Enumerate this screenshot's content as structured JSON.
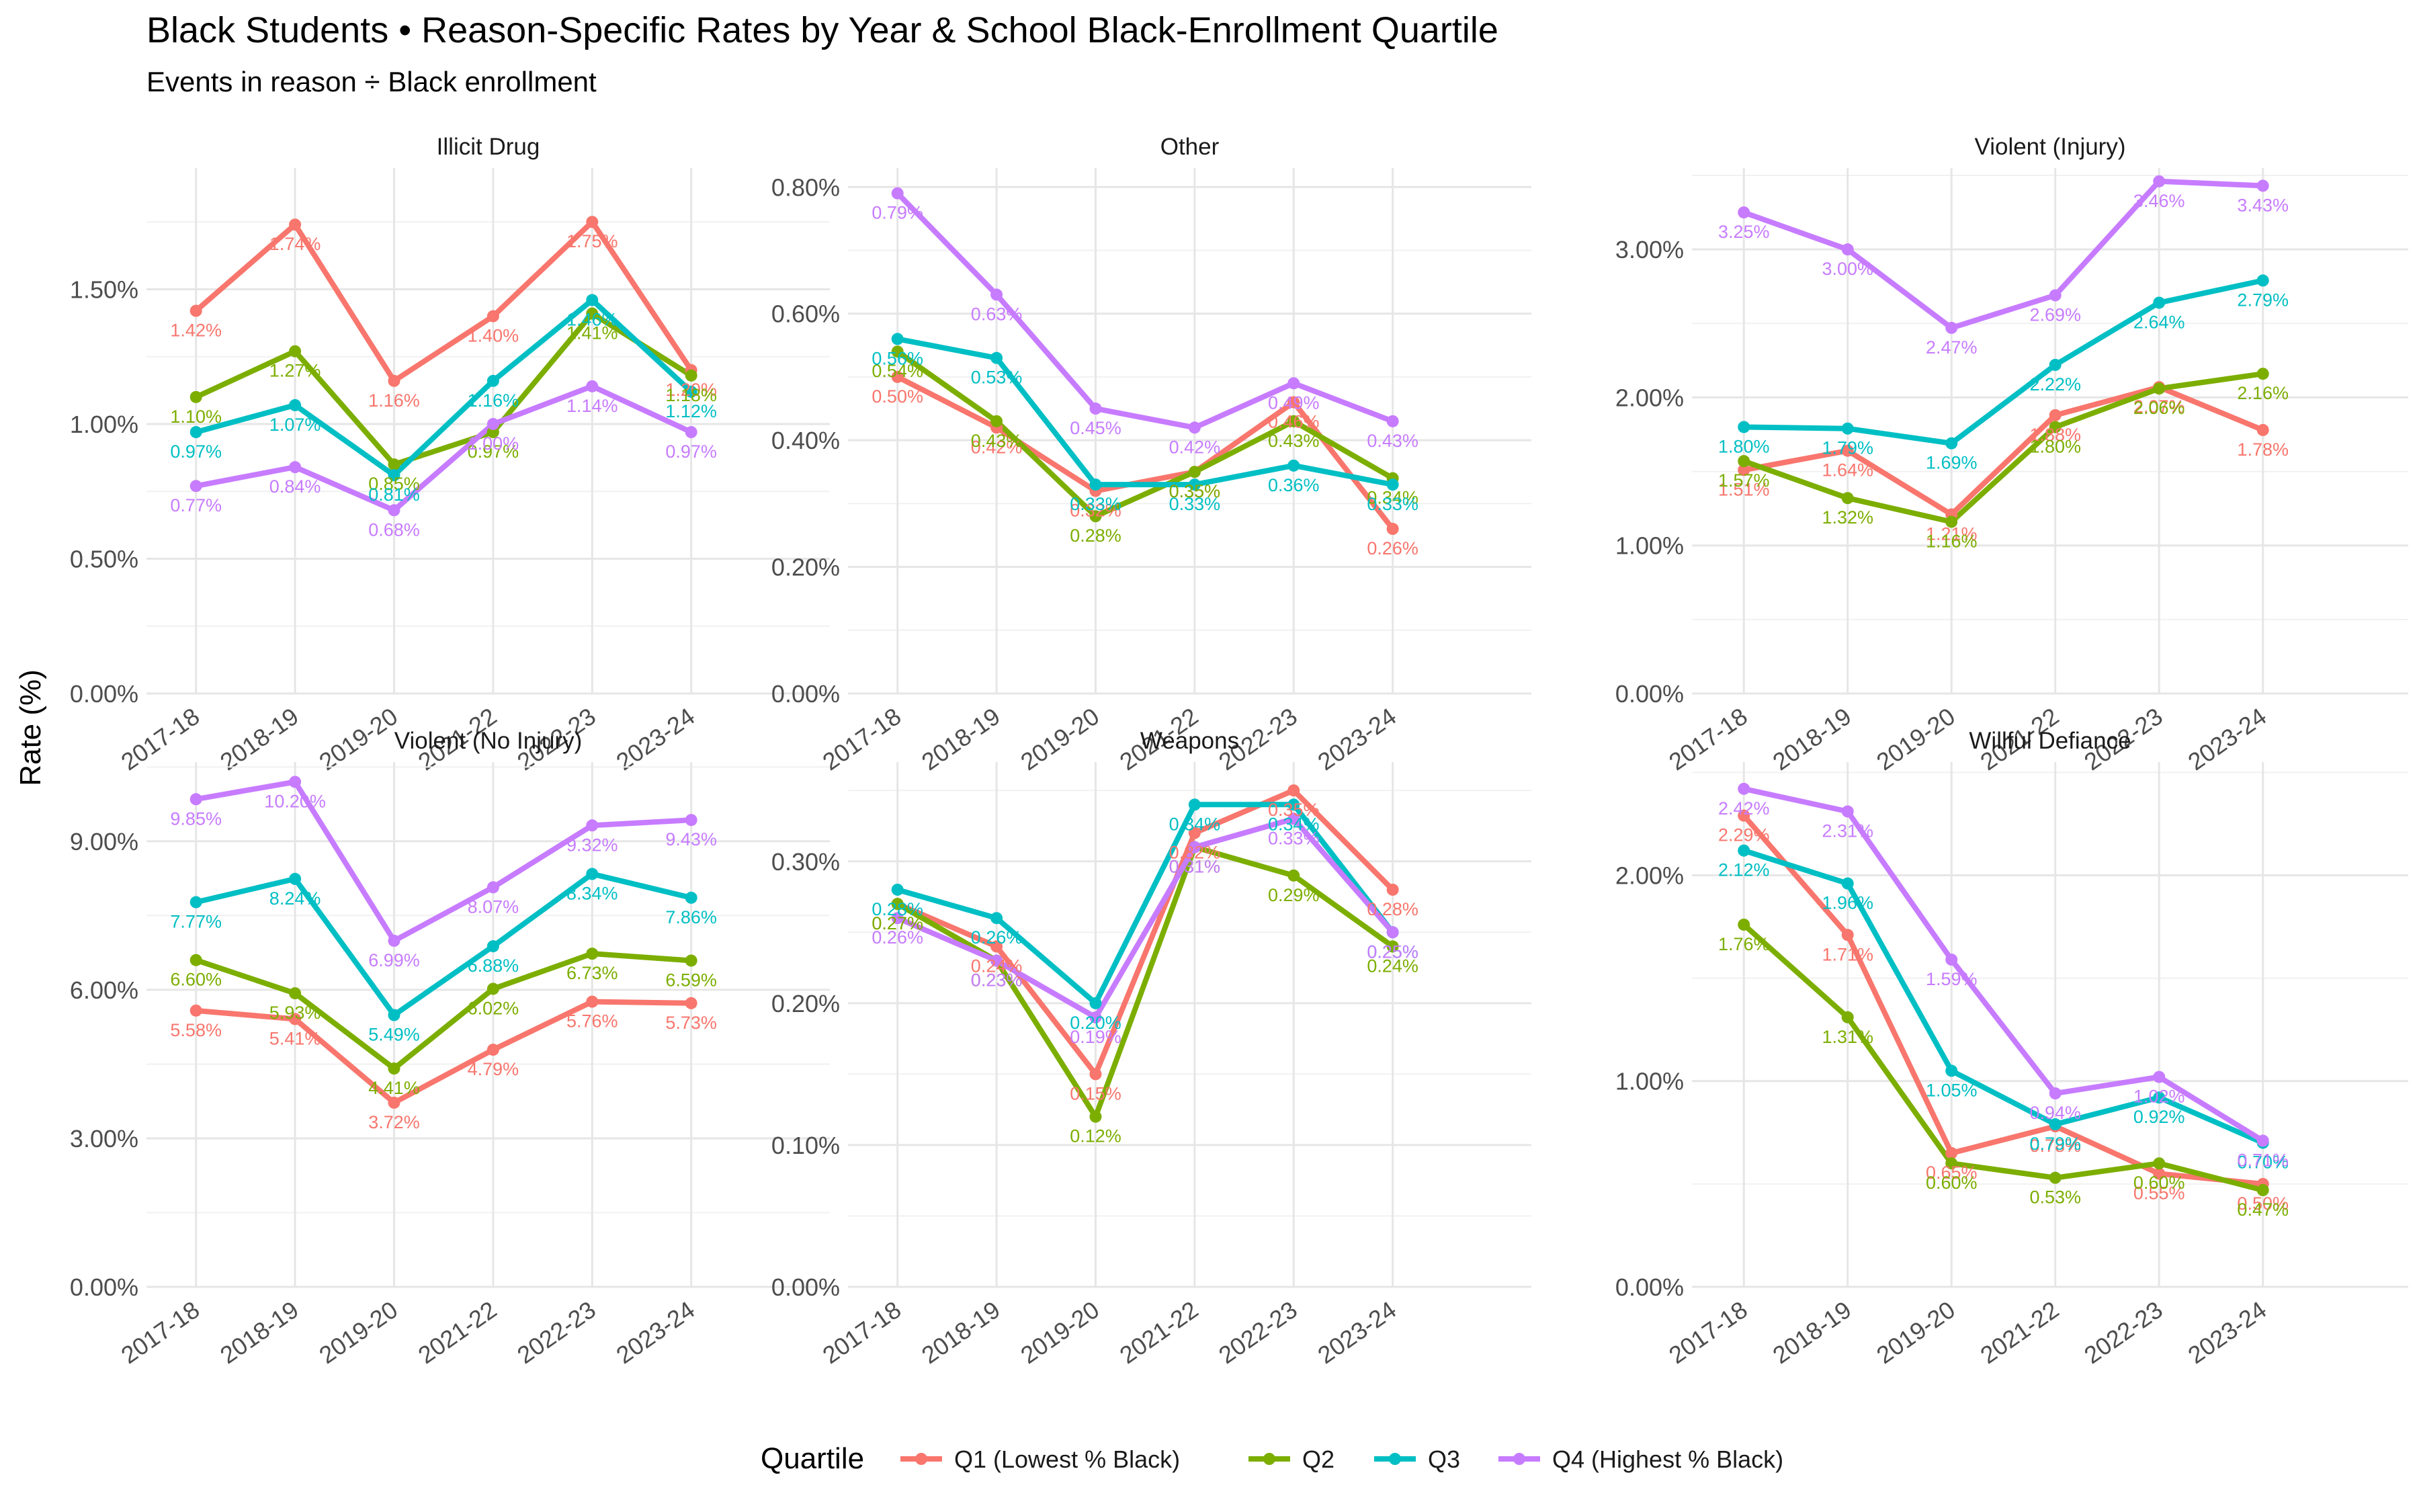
{
  "title": "Black Students • Reason-Specific Rates by Year & School Black-Enrollment Quartile",
  "subtitle": "Events in reason ÷ Black enrollment",
  "chart_data": {
    "type": "line",
    "ylabel": "Rate (%)",
    "legend": {
      "title": "Quartile",
      "position": "bottom"
    },
    "grid": true,
    "categories": [
      "2017-18",
      "2018-19",
      "2019-20",
      "2021-22",
      "2022-23",
      "2023-24"
    ],
    "colors": {
      "Q1 (Lowest % Black)": "#F8766D",
      "Q2": "#7CAE00",
      "Q3": "#00BFC4",
      "Q4 (Highest % Black)": "#C77CFF"
    },
    "panels": [
      {
        "title": "Illicit Drug",
        "ylim": [
          0,
          1.95
        ],
        "yticks": [
          0,
          0.5,
          1.0,
          1.5
        ],
        "ytick_labels": [
          "0.00%",
          "0.50%",
          "1.00%",
          "1.50%"
        ],
        "series": [
          {
            "name": "Q1 (Lowest % Black)",
            "values": [
              1.42,
              1.74,
              1.16,
              1.4,
              1.75,
              1.2
            ],
            "labels": [
              "1.42%",
              "1.74%",
              "1.16%",
              "1.40%",
              "1.75%",
              "1.20%"
            ]
          },
          {
            "name": "Q2",
            "values": [
              1.1,
              1.27,
              0.85,
              0.97,
              1.41,
              1.18
            ],
            "labels": [
              "1.10%",
              "1.27%",
              "0.85%",
              "0.97%",
              "1.41%",
              "1.18%"
            ]
          },
          {
            "name": "Q3",
            "values": [
              0.97,
              1.07,
              0.81,
              1.16,
              1.46,
              1.12
            ],
            "labels": [
              "0.97%",
              "1.07%",
              "0.81%",
              "1.16%",
              "1.46%",
              "1.12%"
            ]
          },
          {
            "name": "Q4 (Highest % Black)",
            "values": [
              0.77,
              0.84,
              0.68,
              1.0,
              1.14,
              0.97
            ],
            "labels": [
              "0.77%",
              "0.84%",
              "0.68%",
              "1.00%",
              "1.14%",
              "0.97%"
            ]
          }
        ]
      },
      {
        "title": "Other",
        "ylim": [
          0,
          0.83
        ],
        "yticks": [
          0,
          0.2,
          0.4,
          0.6,
          0.8
        ],
        "ytick_labels": [
          "0.00%",
          "0.20%",
          "0.40%",
          "0.60%",
          "0.80%"
        ],
        "series": [
          {
            "name": "Q1 (Lowest % Black)",
            "values": [
              0.5,
              0.42,
              0.32,
              0.35,
              0.46,
              0.26
            ],
            "labels": [
              "0.50%",
              "0.42%",
              "0.32%",
              "0.35%",
              "0.46%",
              "0.26%"
            ]
          },
          {
            "name": "Q2",
            "values": [
              0.54,
              0.43,
              0.28,
              0.35,
              0.43,
              0.34
            ],
            "labels": [
              "0.54%",
              "0.43%",
              "0.28%",
              "0.35%",
              "0.43%",
              "0.34%"
            ]
          },
          {
            "name": "Q3",
            "values": [
              0.56,
              0.53,
              0.33,
              0.33,
              0.36,
              0.33
            ],
            "labels": [
              "0.56%",
              "0.53%",
              "0.33%",
              "0.33%",
              "0.36%",
              "0.33%"
            ]
          },
          {
            "name": "Q4 (Highest % Black)",
            "values": [
              0.79,
              0.63,
              0.45,
              0.42,
              0.49,
              0.43
            ],
            "labels": [
              "0.79%",
              "0.63%",
              "0.45%",
              "0.42%",
              "0.49%",
              "0.43%"
            ]
          }
        ]
      },
      {
        "title": "Violent (Injury)",
        "ylim": [
          0,
          3.55
        ],
        "yticks": [
          0,
          1.0,
          2.0,
          3.0
        ],
        "ytick_labels": [
          "0.00%",
          "1.00%",
          "2.00%",
          "3.00%"
        ],
        "series": [
          {
            "name": "Q1 (Lowest % Black)",
            "values": [
              1.51,
              1.64,
              1.21,
              1.88,
              2.07,
              1.78
            ],
            "labels": [
              "1.51%",
              "1.64%",
              "1.21%",
              "1.88%",
              "2.07%",
              "1.78%"
            ]
          },
          {
            "name": "Q2",
            "values": [
              1.57,
              1.32,
              1.16,
              1.8,
              2.06,
              2.16
            ],
            "labels": [
              "1.57%",
              "1.32%",
              "1.16%",
              "1.80%",
              "2.06%",
              "2.16%"
            ]
          },
          {
            "name": "Q3",
            "values": [
              1.8,
              1.79,
              1.69,
              2.22,
              2.64,
              2.79
            ],
            "labels": [
              "1.80%",
              "1.79%",
              "1.69%",
              "2.22%",
              "2.64%",
              "2.79%"
            ]
          },
          {
            "name": "Q4 (Highest % Black)",
            "values": [
              3.25,
              3.0,
              2.47,
              2.69,
              3.46,
              3.43
            ],
            "labels": [
              "3.25%",
              "3.00%",
              "2.47%",
              "2.69%",
              "3.46%",
              "3.43%"
            ]
          }
        ]
      },
      {
        "title": "Violent (No Injury)",
        "ylim": [
          0,
          10.6
        ],
        "yticks": [
          0,
          3,
          6,
          9
        ],
        "ytick_labels": [
          "0.00%",
          "3.00%",
          "6.00%",
          "9.00%"
        ],
        "series": [
          {
            "name": "Q1 (Lowest % Black)",
            "values": [
              5.58,
              5.41,
              3.72,
              4.79,
              5.76,
              5.73
            ],
            "labels": [
              "5.58%",
              "5.41%",
              "3.72%",
              "4.79%",
              "5.76%",
              "5.73%"
            ]
          },
          {
            "name": "Q2",
            "values": [
              6.6,
              5.93,
              4.41,
              6.02,
              6.73,
              6.59
            ],
            "labels": [
              "6.60%",
              "5.93%",
              "4.41%",
              "6.02%",
              "6.73%",
              "6.59%"
            ]
          },
          {
            "name": "Q3",
            "values": [
              7.77,
              8.24,
              5.49,
              6.88,
              8.34,
              7.86
            ],
            "labels": [
              "7.77%",
              "8.24%",
              "5.49%",
              "6.88%",
              "8.34%",
              "7.86%"
            ]
          },
          {
            "name": "Q4 (Highest % Black)",
            "values": [
              9.85,
              10.2,
              6.99,
              8.07,
              9.32,
              9.43
            ],
            "labels": [
              "9.85%",
              "10.20%",
              "6.99%",
              "8.07%",
              "9.32%",
              "9.43%"
            ]
          }
        ]
      },
      {
        "title": "Weapons",
        "ylim": [
          0,
          0.37
        ],
        "yticks": [
          0,
          0.1,
          0.2,
          0.3
        ],
        "ytick_labels": [
          "0.00%",
          "0.10%",
          "0.20%",
          "0.30%"
        ],
        "series": [
          {
            "name": "Q1 (Lowest % Black)",
            "values": [
              0.27,
              0.24,
              0.15,
              0.32,
              0.35,
              0.28
            ],
            "labels": [
              "0.27%",
              "0.24%",
              "0.15%",
              "0.32%",
              "0.35%",
              "0.28%"
            ]
          },
          {
            "name": "Q2",
            "values": [
              0.27,
              0.23,
              0.12,
              0.31,
              0.29,
              0.24
            ],
            "labels": [
              "0.27%",
              "0.23%",
              "0.12%",
              "0.31%",
              "0.29%",
              "0.24%"
            ]
          },
          {
            "name": "Q3",
            "values": [
              0.28,
              0.26,
              0.2,
              0.34,
              0.34,
              0.25
            ],
            "labels": [
              "0.28%",
              "0.26%",
              "0.20%",
              "0.34%",
              "0.34%",
              "0.25%"
            ]
          },
          {
            "name": "Q4 (Highest % Black)",
            "values": [
              0.26,
              0.23,
              0.19,
              0.31,
              0.33,
              0.25
            ],
            "labels": [
              "0.26%",
              "0.23%",
              "0.19%",
              "0.31%",
              "0.33%",
              "0.25%"
            ]
          }
        ]
      },
      {
        "title": "Willful Defiance",
        "ylim": [
          0,
          2.55
        ],
        "yticks": [
          0,
          1.0,
          2.0
        ],
        "ytick_labels": [
          "0.00%",
          "1.00%",
          "2.00%"
        ],
        "series": [
          {
            "name": "Q1 (Lowest % Black)",
            "values": [
              2.29,
              1.71,
              0.65,
              0.78,
              0.55,
              0.5
            ],
            "labels": [
              "2.29%",
              "1.71%",
              "0.65%",
              "0.78%",
              "0.55%",
              "0.50%"
            ]
          },
          {
            "name": "Q2",
            "values": [
              1.76,
              1.31,
              0.6,
              0.53,
              0.6,
              0.47
            ],
            "labels": [
              "1.76%",
              "1.31%",
              "0.60%",
              "0.53%",
              "0.60%",
              "0.47%"
            ]
          },
          {
            "name": "Q3",
            "values": [
              2.12,
              1.96,
              1.05,
              0.79,
              0.92,
              0.7
            ],
            "labels": [
              "2.12%",
              "1.96%",
              "1.05%",
              "0.79%",
              "0.92%",
              "0.70%"
            ]
          },
          {
            "name": "Q4 (Highest % Black)",
            "values": [
              2.42,
              2.31,
              1.59,
              0.94,
              1.02,
              0.71
            ],
            "labels": [
              "2.42%",
              "2.31%",
              "1.59%",
              "0.94%",
              "1.02%",
              "0.71%"
            ]
          }
        ]
      }
    ]
  }
}
